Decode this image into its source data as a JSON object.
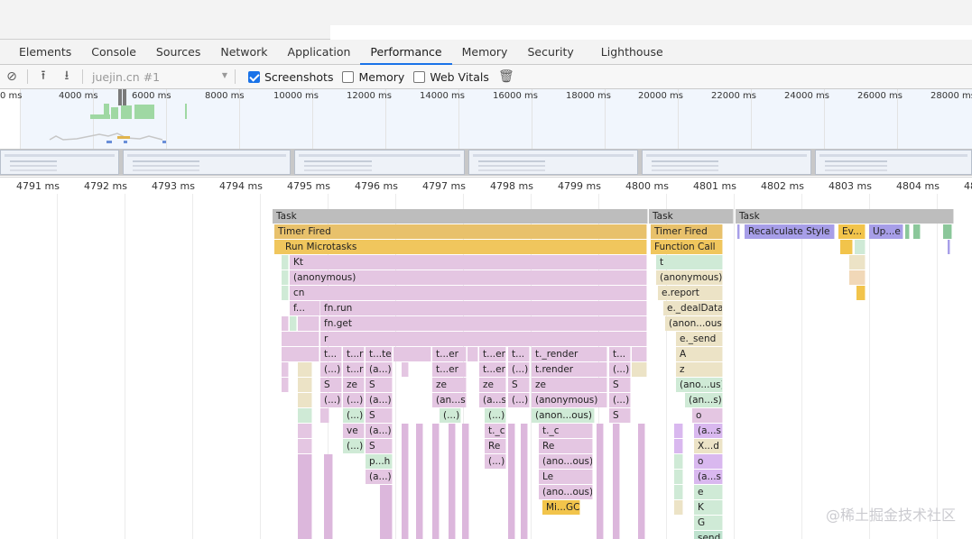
{
  "tabs": [
    "Elements",
    "Console",
    "Sources",
    "Network",
    "Application",
    "Performance",
    "Memory",
    "Security",
    "Lighthouse"
  ],
  "active_tab": "Performance",
  "toolbar": {
    "target": "juejin.cn #1",
    "screenshots_label": "Screenshots",
    "memory_label": "Memory",
    "webvitals_label": "Web Vitals"
  },
  "overview_ticks": [
    "0 ms",
    "4000 ms",
    "6000 ms",
    "8000 ms",
    "10000 ms",
    "12000 ms",
    "14000 ms",
    "16000 ms",
    "18000 ms",
    "20000 ms",
    "22000 ms",
    "24000 ms",
    "26000 ms",
    "28000 ms"
  ],
  "ruler_ticks": [
    "4791 ms",
    "4792 ms",
    "4793 ms",
    "4794 ms",
    "4795 ms",
    "4796 ms",
    "4797 ms",
    "4798 ms",
    "4799 ms",
    "4800 ms",
    "4801 ms",
    "4802 ms",
    "4803 ms",
    "4804 ms",
    "48"
  ],
  "flame": {
    "task": "Task",
    "timer_fired": "Timer Fired",
    "run_microtasks": "Run Microtasks",
    "function_call": "Function Call",
    "recalc_style": "Recalculate Style",
    "ev": "Ev...",
    "up": "Up...e",
    "kt": "Kt",
    "anonymous": "(anonymous)",
    "cn": "cn",
    "f": "f...",
    "fn_run": "fn.run",
    "fn_get": "fn.get",
    "r": "r",
    "t_dots": "t...",
    "t_r": "t...r",
    "t_te": "t...te",
    "t_er": "t...er",
    "t_render": "t._render",
    "t_render2": "t.render",
    "paren": "(...)",
    "a_dots": "(a...)",
    "S": "S",
    "ze": "ze",
    "an_s": "(an...s)",
    "a_s": "(a...s)",
    "anon_ous": "(anon...ous)",
    "ve": "ve",
    "t_c": "t._c",
    "Re": "Re",
    "p_h": "p...h",
    "ano_ous": "(ano...ous)",
    "Le": "Le",
    "mi_gc": "Mi...GC",
    "t": "t",
    "e_report": "e.report",
    "e_dealData": "e._dealData",
    "anon_ous2": "(anon...ous)",
    "e_send": "e._send",
    "A": "A",
    "z": "z",
    "ano_us": "(ano...us)",
    "o": "o",
    "X_d": "X...d",
    "e": "e",
    "K": "K",
    "G": "G",
    "send": "send"
  },
  "watermark": "@稀土掘金技术社区"
}
